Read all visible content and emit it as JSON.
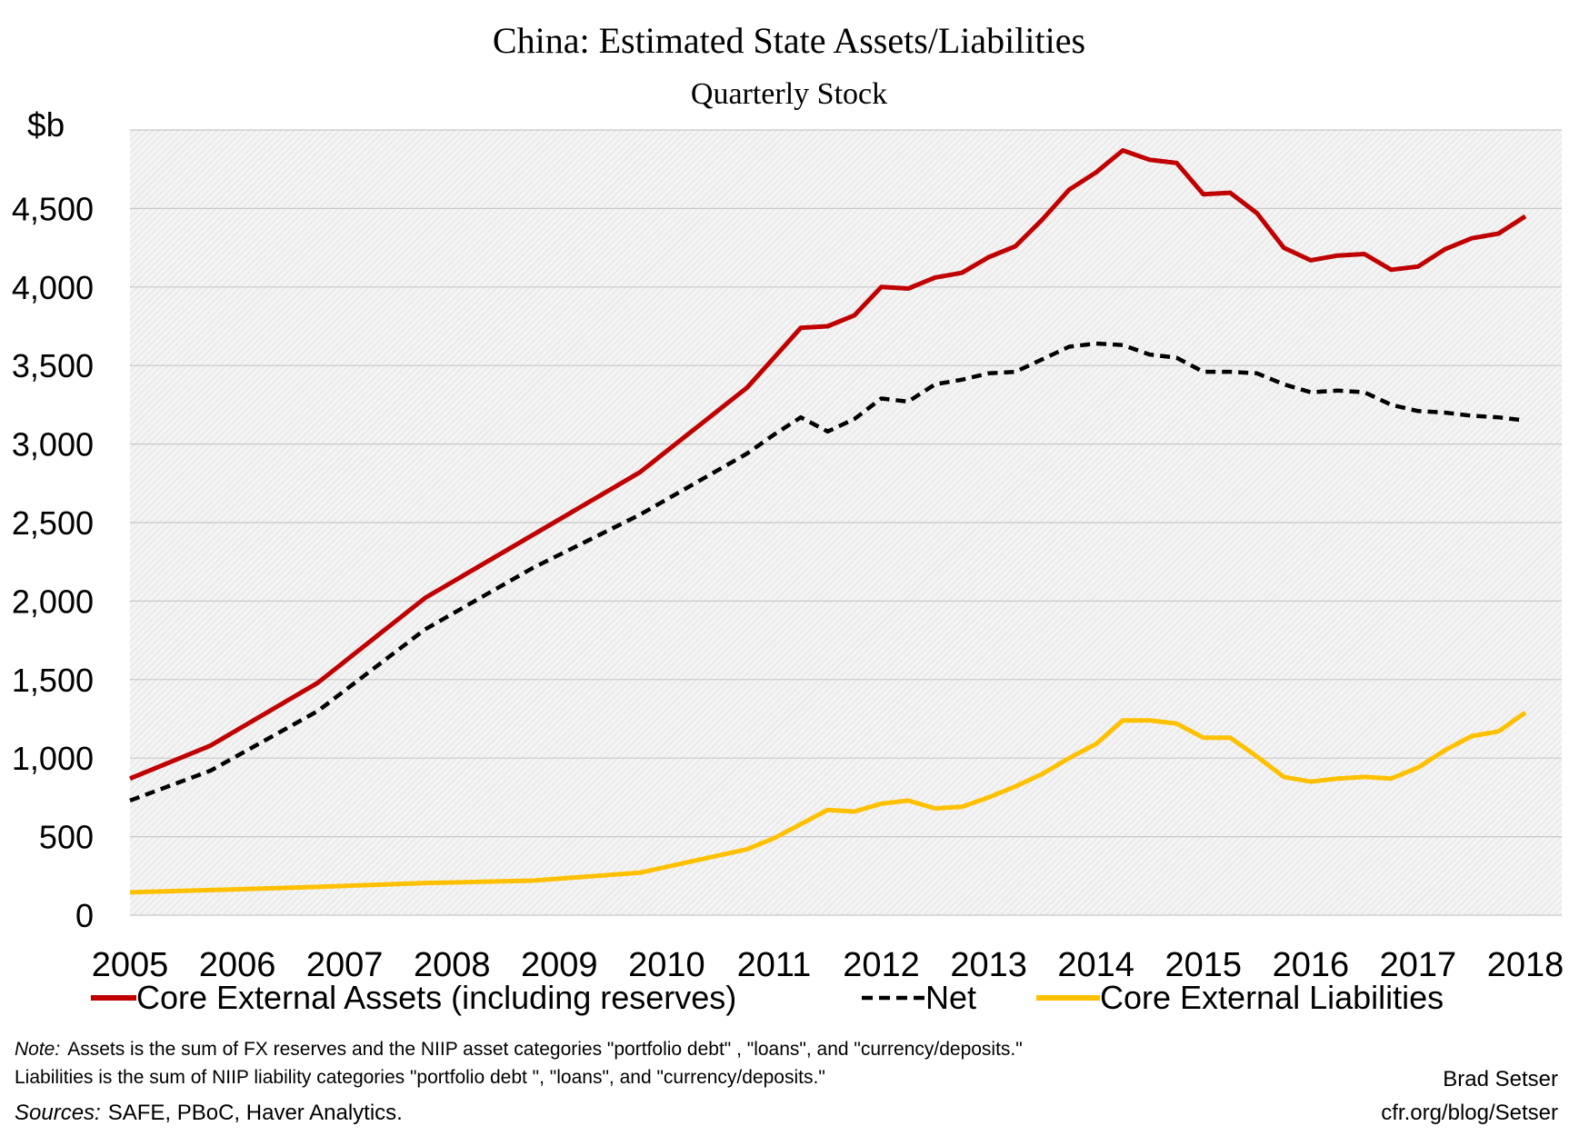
{
  "chart_data": {
    "type": "line",
    "title": "China: Estimated State Assets/Liabilities",
    "subtitle": "Quarterly Stock",
    "ylabel": "$b",
    "xlabel": "",
    "ylim": [
      0,
      5000
    ],
    "xlim": [
      2005.0,
      2018.25
    ],
    "yticks": [
      {
        "value": 0,
        "label": "0"
      },
      {
        "value": 500,
        "label": "500"
      },
      {
        "value": 1000,
        "label": "1,000"
      },
      {
        "value": 1500,
        "label": "1,500"
      },
      {
        "value": 2000,
        "label": "2,000"
      },
      {
        "value": 2500,
        "label": "2,500"
      },
      {
        "value": 3000,
        "label": "3,000"
      },
      {
        "value": 3500,
        "label": "3,500"
      },
      {
        "value": 4000,
        "label": "4,000"
      },
      {
        "value": 4500,
        "label": "4,500"
      }
    ],
    "xticks": [
      {
        "value": 2005,
        "label": "2005"
      },
      {
        "value": 2006,
        "label": "2006"
      },
      {
        "value": 2007,
        "label": "2007"
      },
      {
        "value": 2008,
        "label": "2008"
      },
      {
        "value": 2009,
        "label": "2009"
      },
      {
        "value": 2010,
        "label": "2010"
      },
      {
        "value": 2011,
        "label": "2011"
      },
      {
        "value": 2012,
        "label": "2012"
      },
      {
        "value": 2013,
        "label": "2013"
      },
      {
        "value": 2014,
        "label": "2014"
      },
      {
        "value": 2015,
        "label": "2015"
      },
      {
        "value": 2016,
        "label": "2016"
      },
      {
        "value": 2017,
        "label": "2017"
      },
      {
        "value": 2018,
        "label": "2018"
      }
    ],
    "grid": true,
    "legend_position": "bottom",
    "series": [
      {
        "name": "Core External Assets (including reserves)",
        "color": "#C00000",
        "style": "solid",
        "points": [
          [
            2005.0,
            870
          ],
          [
            2005.75,
            1080
          ],
          [
            2006.75,
            1480
          ],
          [
            2007.75,
            2020
          ],
          [
            2008.75,
            2420
          ],
          [
            2009.75,
            2820
          ],
          [
            2010.75,
            3360
          ],
          [
            2011.0,
            3550
          ],
          [
            2011.25,
            3740
          ],
          [
            2011.5,
            3750
          ],
          [
            2011.75,
            3820
          ],
          [
            2012.0,
            4000
          ],
          [
            2012.25,
            3990
          ],
          [
            2012.5,
            4060
          ],
          [
            2012.75,
            4090
          ],
          [
            2013.0,
            4190
          ],
          [
            2013.25,
            4260
          ],
          [
            2013.5,
            4430
          ],
          [
            2013.75,
            4620
          ],
          [
            2014.0,
            4730
          ],
          [
            2014.25,
            4870
          ],
          [
            2014.5,
            4810
          ],
          [
            2014.75,
            4790
          ],
          [
            2015.0,
            4590
          ],
          [
            2015.25,
            4600
          ],
          [
            2015.5,
            4470
          ],
          [
            2015.75,
            4250
          ],
          [
            2016.0,
            4170
          ],
          [
            2016.25,
            4200
          ],
          [
            2016.5,
            4210
          ],
          [
            2016.75,
            4110
          ],
          [
            2017.0,
            4130
          ],
          [
            2017.25,
            4240
          ],
          [
            2017.5,
            4310
          ],
          [
            2017.75,
            4340
          ],
          [
            2018.0,
            4450
          ]
        ]
      },
      {
        "name": "Net",
        "color": "#000000",
        "style": "dashed",
        "points": [
          [
            2005.0,
            730
          ],
          [
            2005.75,
            920
          ],
          [
            2006.75,
            1300
          ],
          [
            2007.75,
            1820
          ],
          [
            2008.75,
            2210
          ],
          [
            2009.75,
            2550
          ],
          [
            2010.75,
            2940
          ],
          [
            2011.0,
            3060
          ],
          [
            2011.25,
            3170
          ],
          [
            2011.5,
            3080
          ],
          [
            2011.75,
            3160
          ],
          [
            2012.0,
            3290
          ],
          [
            2012.25,
            3270
          ],
          [
            2012.5,
            3380
          ],
          [
            2012.75,
            3410
          ],
          [
            2013.0,
            3450
          ],
          [
            2013.25,
            3460
          ],
          [
            2013.5,
            3540
          ],
          [
            2013.75,
            3620
          ],
          [
            2014.0,
            3640
          ],
          [
            2014.25,
            3630
          ],
          [
            2014.5,
            3570
          ],
          [
            2014.75,
            3550
          ],
          [
            2015.0,
            3460
          ],
          [
            2015.25,
            3460
          ],
          [
            2015.5,
            3450
          ],
          [
            2015.75,
            3380
          ],
          [
            2016.0,
            3330
          ],
          [
            2016.25,
            3340
          ],
          [
            2016.5,
            3330
          ],
          [
            2016.75,
            3250
          ],
          [
            2017.0,
            3210
          ],
          [
            2017.25,
            3200
          ],
          [
            2017.5,
            3180
          ],
          [
            2017.75,
            3170
          ],
          [
            2018.0,
            3150
          ]
        ]
      },
      {
        "name": "Core External Liabilities",
        "color": "#FFC000",
        "style": "solid",
        "points": [
          [
            2005.0,
            145
          ],
          [
            2005.75,
            160
          ],
          [
            2006.75,
            180
          ],
          [
            2007.75,
            205
          ],
          [
            2008.75,
            220
          ],
          [
            2009.75,
            270
          ],
          [
            2010.75,
            420
          ],
          [
            2011.0,
            490
          ],
          [
            2011.25,
            580
          ],
          [
            2011.5,
            670
          ],
          [
            2011.75,
            660
          ],
          [
            2012.0,
            710
          ],
          [
            2012.25,
            730
          ],
          [
            2012.5,
            680
          ],
          [
            2012.75,
            690
          ],
          [
            2013.0,
            750
          ],
          [
            2013.25,
            820
          ],
          [
            2013.5,
            900
          ],
          [
            2013.75,
            1000
          ],
          [
            2014.0,
            1090
          ],
          [
            2014.25,
            1240
          ],
          [
            2014.5,
            1240
          ],
          [
            2014.75,
            1220
          ],
          [
            2015.0,
            1130
          ],
          [
            2015.25,
            1130
          ],
          [
            2015.5,
            1010
          ],
          [
            2015.75,
            880
          ],
          [
            2016.0,
            850
          ],
          [
            2016.25,
            870
          ],
          [
            2016.5,
            880
          ],
          [
            2016.75,
            870
          ],
          [
            2017.0,
            940
          ],
          [
            2017.25,
            1050
          ],
          [
            2017.5,
            1140
          ],
          [
            2017.75,
            1170
          ],
          [
            2018.0,
            1290
          ]
        ]
      }
    ]
  },
  "notes": {
    "note_label": "Note:",
    "note_line1": "Assets is the sum of FX reserves and the NIIP asset categories \"portfolio debt\" , \"loans\", and \"currency/deposits.\"",
    "note_line2": "Liabilities is the sum  of NIIP liability categories \"portfolio debt \", \"loans\", and \"currency/deposits.\"",
    "sources_label": "Sources:",
    "sources_text": "SAFE, PBoC, Haver Analytics."
  },
  "credit": {
    "author": "Brad Setser",
    "url": "cfr.org/blog/Setser"
  }
}
